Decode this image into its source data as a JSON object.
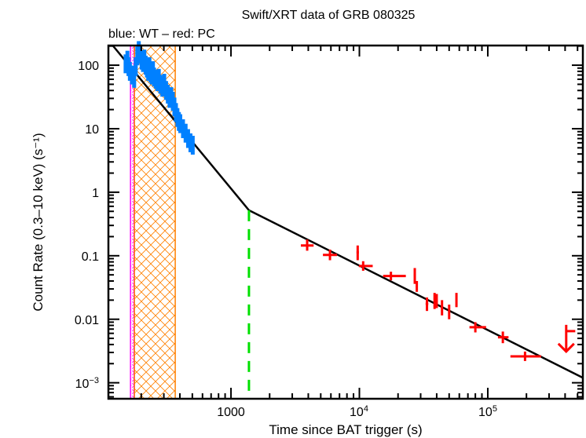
{
  "chart_data": {
    "type": "scatter",
    "title": "Swift/XRT data of GRB 080325",
    "subtitle": "blue: WT – red: PC",
    "xlabel": "Time since BAT trigger (s)",
    "ylabel": "Count Rate (0.3–10 keV) (s⁻¹)",
    "xscale": "log",
    "yscale": "log",
    "xlim": [
      111,
      550000
    ],
    "ylim": [
      0.00056,
      204
    ],
    "grid": false,
    "x_ticks": [
      {
        "value": 1000,
        "label": "1000"
      },
      {
        "value": 10000,
        "label": "10⁴"
      },
      {
        "value": 100000,
        "label": "10⁵"
      }
    ],
    "y_ticks": [
      {
        "value": 100,
        "label": "100"
      },
      {
        "value": 10,
        "label": "10"
      },
      {
        "value": 1,
        "label": "1"
      },
      {
        "value": 0.1,
        "label": "0.1"
      },
      {
        "value": 0.01,
        "label": "0.01"
      },
      {
        "value": 0.001,
        "label": "10⁻³"
      }
    ],
    "colors": {
      "wt": "#0080ff",
      "pc": "#ff0000",
      "model": "#000000",
      "break_line": "#00e000",
      "magenta_band": "#ff00ff",
      "orange_band": "#ff8000"
    },
    "bands": [
      {
        "name": "magenta-hatched-interval",
        "x": [
          165,
          176
        ]
      },
      {
        "name": "orange-crosshatched-interval",
        "x": [
          177,
          368
        ]
      }
    ],
    "break_time": 1380,
    "model": {
      "name": "broken power law fit",
      "points": [
        [
          120,
          204
        ],
        [
          1380,
          0.52
        ],
        [
          550000,
          0.0012
        ]
      ]
    },
    "series": [
      {
        "name": "WT",
        "color": "blue",
        "points": [
          [
            150,
            105
          ],
          [
            155,
            120
          ],
          [
            158,
            95
          ],
          [
            162,
            80
          ],
          [
            168,
            70
          ],
          [
            175,
            62
          ],
          [
            180,
            95
          ],
          [
            185,
            140
          ],
          [
            190,
            170
          ],
          [
            195,
            150
          ],
          [
            200,
            120
          ],
          [
            205,
            110
          ],
          [
            210,
            125
          ],
          [
            215,
            100
          ],
          [
            220,
            90
          ],
          [
            225,
            80
          ],
          [
            230,
            95
          ],
          [
            235,
            75
          ],
          [
            240,
            70
          ],
          [
            245,
            82
          ],
          [
            250,
            65
          ],
          [
            258,
            60
          ],
          [
            265,
            55
          ],
          [
            272,
            62
          ],
          [
            280,
            50
          ],
          [
            290,
            45
          ],
          [
            300,
            52
          ],
          [
            310,
            40
          ],
          [
            320,
            35
          ],
          [
            330,
            30
          ],
          [
            340,
            32
          ],
          [
            350,
            27
          ],
          [
            360,
            22
          ],
          [
            370,
            18
          ],
          [
            380,
            15
          ],
          [
            390,
            13
          ],
          [
            400,
            12
          ],
          [
            420,
            10
          ],
          [
            440,
            8.5
          ],
          [
            460,
            7
          ],
          [
            480,
            6
          ],
          [
            500,
            5.5
          ]
        ]
      },
      {
        "name": "PC",
        "color": "red",
        "points": [
          {
            "t": 3920,
            "t_lo": 3500,
            "t_hi": 4400,
            "rate": 0.145,
            "r_lo": 0.12,
            "r_hi": 0.18
          },
          {
            "t": 5900,
            "t_lo": 5200,
            "t_hi": 6700,
            "rate": 0.103,
            "r_lo": 0.085,
            "r_hi": 0.125
          },
          {
            "t": 9700,
            "t_lo": 9500,
            "t_hi": 9900,
            "rate": 0.113,
            "r_lo": 0.085,
            "r_hi": 0.145
          },
          {
            "t": 10700,
            "t_lo": 9900,
            "t_hi": 12700,
            "rate": 0.069,
            "r_lo": 0.058,
            "r_hi": 0.082
          },
          {
            "t": 17600,
            "t_lo": 15300,
            "t_hi": 23000,
            "rate": 0.048,
            "r_lo": 0.041,
            "r_hi": 0.056
          },
          {
            "t": 27000,
            "t_lo": 26500,
            "t_hi": 27500,
            "rate": 0.05,
            "r_lo": 0.036,
            "r_hi": 0.064
          },
          {
            "t": 28000,
            "t_lo": 27500,
            "t_hi": 28500,
            "rate": 0.033,
            "r_lo": 0.027,
            "r_hi": 0.04
          },
          {
            "t": 33600,
            "t_lo": 32800,
            "t_hi": 34400,
            "rate": 0.0175,
            "r_lo": 0.0135,
            "r_hi": 0.022
          },
          {
            "t": 38500,
            "t_lo": 37800,
            "t_hi": 39200,
            "rate": 0.021,
            "r_lo": 0.0145,
            "r_hi": 0.026
          },
          {
            "t": 40000,
            "t_lo": 39300,
            "t_hi": 40700,
            "rate": 0.0195,
            "r_lo": 0.015,
            "r_hi": 0.025
          },
          {
            "t": 44000,
            "t_lo": 43200,
            "t_hi": 44800,
            "rate": 0.015,
            "r_lo": 0.0115,
            "r_hi": 0.02
          },
          {
            "t": 50000,
            "t_lo": 49200,
            "t_hi": 50800,
            "rate": 0.013,
            "r_lo": 0.01,
            "r_hi": 0.017
          },
          {
            "t": 57000,
            "t_lo": 56200,
            "t_hi": 57800,
            "rate": 0.0195,
            "r_lo": 0.0155,
            "r_hi": 0.026
          },
          {
            "t": 80000,
            "t_lo": 72000,
            "t_hi": 97000,
            "rate": 0.0075,
            "r_lo": 0.0062,
            "r_hi": 0.009
          },
          {
            "t": 131000,
            "t_lo": 120000,
            "t_hi": 145000,
            "rate": 0.0052,
            "r_lo": 0.0042,
            "r_hi": 0.0064
          },
          {
            "t": 195000,
            "t_lo": 150000,
            "t_hi": 260000,
            "rate": 0.0026,
            "r_lo": 0.0022,
            "r_hi": 0.0031
          }
        ]
      },
      {
        "name": "PC upper limit",
        "color": "red",
        "points": [
          {
            "t": 408000,
            "t_lo": 400000,
            "t_hi": 480000,
            "rate": 0.0065,
            "limit_to": 0.0031
          }
        ]
      }
    ]
  }
}
